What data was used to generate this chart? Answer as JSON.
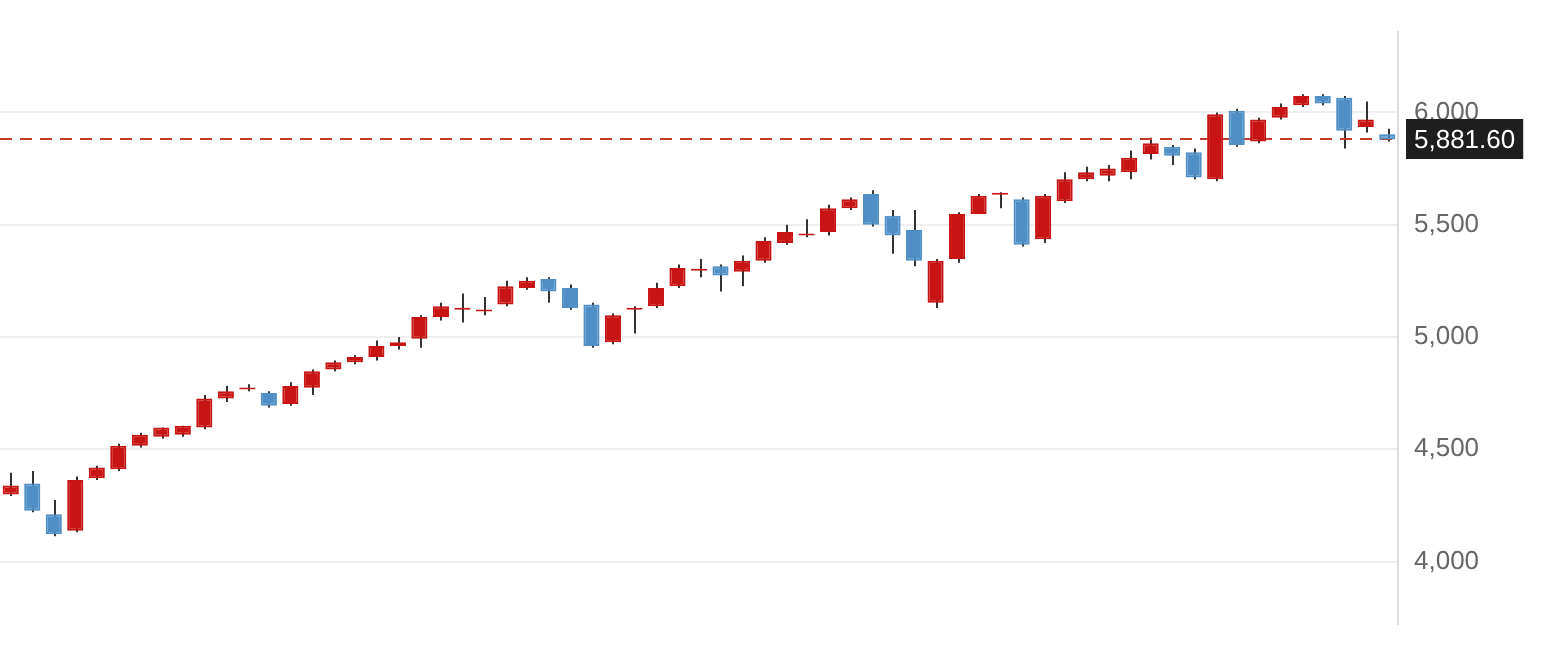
{
  "chart_data": {
    "type": "candlestick",
    "categories": [
      null,
      null,
      null,
      null,
      null,
      null,
      null,
      null,
      null,
      null,
      null,
      null,
      null,
      null,
      null,
      null,
      null,
      null,
      null,
      null,
      null,
      null,
      null,
      null,
      null,
      null,
      null,
      null,
      null,
      null,
      null,
      null,
      null,
      null,
      null,
      null,
      null,
      null,
      null,
      null,
      null,
      null,
      null,
      null,
      null,
      null,
      null,
      null,
      null,
      null,
      null,
      null,
      null,
      null,
      null,
      null,
      null,
      null,
      null,
      null,
      null,
      null,
      null,
      null,
      null
    ],
    "ohlc": [
      [
        4298,
        4395,
        4292,
        4339
      ],
      [
        4347,
        4403,
        4220,
        4226
      ],
      [
        4210,
        4274,
        4113,
        4121
      ],
      [
        4137,
        4379,
        4130,
        4363
      ],
      [
        4371,
        4427,
        4363,
        4419
      ],
      [
        4411,
        4524,
        4403,
        4516
      ],
      [
        4516,
        4573,
        4508,
        4565
      ],
      [
        4556,
        4597,
        4548,
        4597
      ],
      [
        4565,
        4605,
        4556,
        4605
      ],
      [
        4597,
        4742,
        4589,
        4726
      ],
      [
        4726,
        4782,
        4710,
        4758
      ],
      [
        4766,
        4790,
        4758,
        4770
      ],
      [
        4750,
        4758,
        4686,
        4694
      ],
      [
        4702,
        4798,
        4694,
        4782
      ],
      [
        4774,
        4855,
        4742,
        4847
      ],
      [
        4855,
        4895,
        4847,
        4887
      ],
      [
        4887,
        4919,
        4879,
        4911
      ],
      [
        4911,
        4984,
        4895,
        4960
      ],
      [
        4960,
        5000,
        4944,
        4976
      ],
      [
        4992,
        5097,
        4952,
        5089
      ],
      [
        5089,
        5153,
        5073,
        5137
      ],
      [
        5121,
        5194,
        5065,
        5129
      ],
      [
        5113,
        5178,
        5097,
        5121
      ],
      [
        5145,
        5250,
        5137,
        5226
      ],
      [
        5218,
        5266,
        5210,
        5250
      ],
      [
        5258,
        5266,
        5153,
        5202
      ],
      [
        5218,
        5234,
        5121,
        5129
      ],
      [
        5145,
        5153,
        4952,
        4960
      ],
      [
        4976,
        5105,
        4968,
        5097
      ],
      [
        5121,
        5137,
        5016,
        5129
      ],
      [
        5137,
        5242,
        5129,
        5218
      ],
      [
        5226,
        5323,
        5218,
        5307
      ],
      [
        5295,
        5347,
        5266,
        5300
      ],
      [
        5315,
        5323,
        5202,
        5274
      ],
      [
        5290,
        5363,
        5226,
        5339
      ],
      [
        5339,
        5444,
        5331,
        5427
      ],
      [
        5419,
        5500,
        5411,
        5468
      ],
      [
        5452,
        5524,
        5444,
        5460
      ],
      [
        5468,
        5589,
        5452,
        5573
      ],
      [
        5573,
        5621,
        5565,
        5613
      ],
      [
        5637,
        5653,
        5492,
        5500
      ],
      [
        5540,
        5565,
        5371,
        5452
      ],
      [
        5476,
        5565,
        5315,
        5339
      ],
      [
        5153,
        5347,
        5129,
        5339
      ],
      [
        5347,
        5556,
        5331,
        5548
      ],
      [
        5548,
        5637,
        5548,
        5629
      ],
      [
        5633,
        5645,
        5573,
        5637
      ],
      [
        5613,
        5621,
        5403,
        5411
      ],
      [
        5435,
        5637,
        5419,
        5629
      ],
      [
        5605,
        5734,
        5597,
        5702
      ],
      [
        5702,
        5758,
        5694,
        5734
      ],
      [
        5718,
        5766,
        5694,
        5750
      ],
      [
        5734,
        5831,
        5702,
        5798
      ],
      [
        5815,
        5887,
        5790,
        5863
      ],
      [
        5847,
        5855,
        5766,
        5807
      ],
      [
        5823,
        5839,
        5702,
        5710
      ],
      [
        5702,
        6000,
        5694,
        5992
      ],
      [
        6008,
        6016,
        5847,
        5855
      ],
      [
        5871,
        5976,
        5863,
        5968
      ],
      [
        5976,
        6040,
        5968,
        6024
      ],
      [
        6032,
        6081,
        6024,
        6073
      ],
      [
        6073,
        6081,
        6032,
        6040
      ],
      [
        6065,
        6073,
        5839,
        5919
      ],
      [
        5935,
        6049,
        5911,
        5968
      ],
      [
        5903,
        5927,
        5871,
        5879
      ]
    ],
    "colors": [
      "#c81414",
      "#4f8fc6",
      "#4f8fc6",
      "#c81414",
      "#c81414",
      "#c81414",
      "#c81414",
      "#c81414",
      "#c81414",
      "#c81414",
      "#c81414",
      "#c81414",
      "#4f8fc6",
      "#c81414",
      "#c81414",
      "#c81414",
      "#c81414",
      "#c81414",
      "#c81414",
      "#c81414",
      "#c81414",
      "#c81414",
      "#c81414",
      "#c81414",
      "#c81414",
      "#4f8fc6",
      "#4f8fc6",
      "#4f8fc6",
      "#c81414",
      "#c81414",
      "#c81414",
      "#c81414",
      "#c81414",
      "#4f8fc6",
      "#c81414",
      "#c81414",
      "#c81414",
      "#c81414",
      "#c81414",
      "#c81414",
      "#4f8fc6",
      "#4f8fc6",
      "#4f8fc6",
      "#c81414",
      "#c81414",
      "#c81414",
      "#c81414",
      "#4f8fc6",
      "#c81414",
      "#c81414",
      "#c81414",
      "#c81414",
      "#c81414",
      "#c81414",
      "#4f8fc6",
      "#4f8fc6",
      "#c81414",
      "#4f8fc6",
      "#c81414",
      "#c81414",
      "#c81414",
      "#4f8fc6",
      "#4f8fc6",
      "#c81414",
      "#4f8fc6"
    ],
    "ylim": [
      3720,
      6360
    ],
    "yticks": [
      {
        "value": 4000,
        "label": "4,000"
      },
      {
        "value": 4500,
        "label": "4,500"
      },
      {
        "value": 5000,
        "label": "5,000"
      },
      {
        "value": 5500,
        "label": "5,500"
      },
      {
        "value": 6000,
        "label": "6,000"
      }
    ],
    "tick_labels": "y",
    "grid": "y",
    "legend": false,
    "ref_lines": [
      {
        "axis": "y",
        "value": 5881.6,
        "label": "5,881.60",
        "color": "#c0392b",
        "line_style": "dashed"
      }
    ]
  }
}
